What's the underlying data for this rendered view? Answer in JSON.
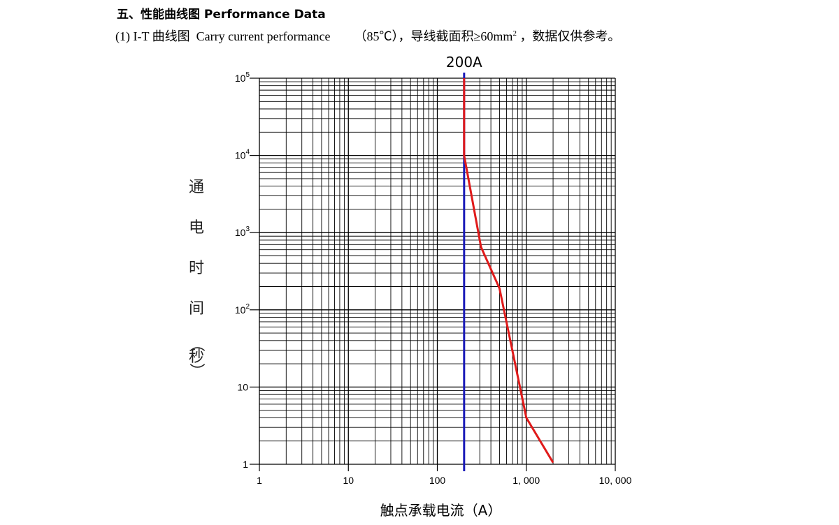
{
  "header": {
    "title": "五、性能曲线图 Performance   Data",
    "subtitle_label": "(1) I-T 曲线图  Carry current performance",
    "subtitle_condition": "（85℃），导线截面积≥60mm",
    "subtitle_sup": "2",
    "subtitle_note": " ，数据仅供参考。"
  },
  "chart_data": {
    "type": "line",
    "x_scale": "log",
    "y_scale": "log",
    "xlim": [
      1,
      10000
    ],
    "ylim": [
      1,
      100000
    ],
    "xlabel": "触点承载电流（A）",
    "ylabel": "通电时间（秒）",
    "ylabel_chars": [
      "通",
      "电",
      "时",
      "间",
      "（",
      "秒",
      "）"
    ],
    "grid": true,
    "x_ticks": [
      {
        "value": 1,
        "label": "1"
      },
      {
        "value": 10,
        "label": "10"
      },
      {
        "value": 100,
        "label": "100"
      },
      {
        "value": 1000,
        "label": "1, 000"
      },
      {
        "value": 10000,
        "label": "10, 000"
      }
    ],
    "y_ticks": [
      {
        "value": 1,
        "label": "1",
        "sup": ""
      },
      {
        "value": 10,
        "label": "10",
        "sup": ""
      },
      {
        "value": 100,
        "label": "10",
        "sup": "2"
      },
      {
        "value": 1000,
        "label": "10",
        "sup": "3"
      },
      {
        "value": 10000,
        "label": "10",
        "sup": "4"
      },
      {
        "value": 100000,
        "label": "10",
        "sup": "5"
      }
    ],
    "marker": {
      "x": 200,
      "label": "200A",
      "color": "#1a1ab8"
    },
    "series": [
      {
        "color": "#e01a1a",
        "points": [
          [
            200,
            100000
          ],
          [
            200,
            10000
          ],
          [
            310,
            650
          ],
          [
            500,
            190
          ],
          [
            1000,
            4
          ],
          [
            2000,
            1.05
          ]
        ]
      }
    ]
  }
}
